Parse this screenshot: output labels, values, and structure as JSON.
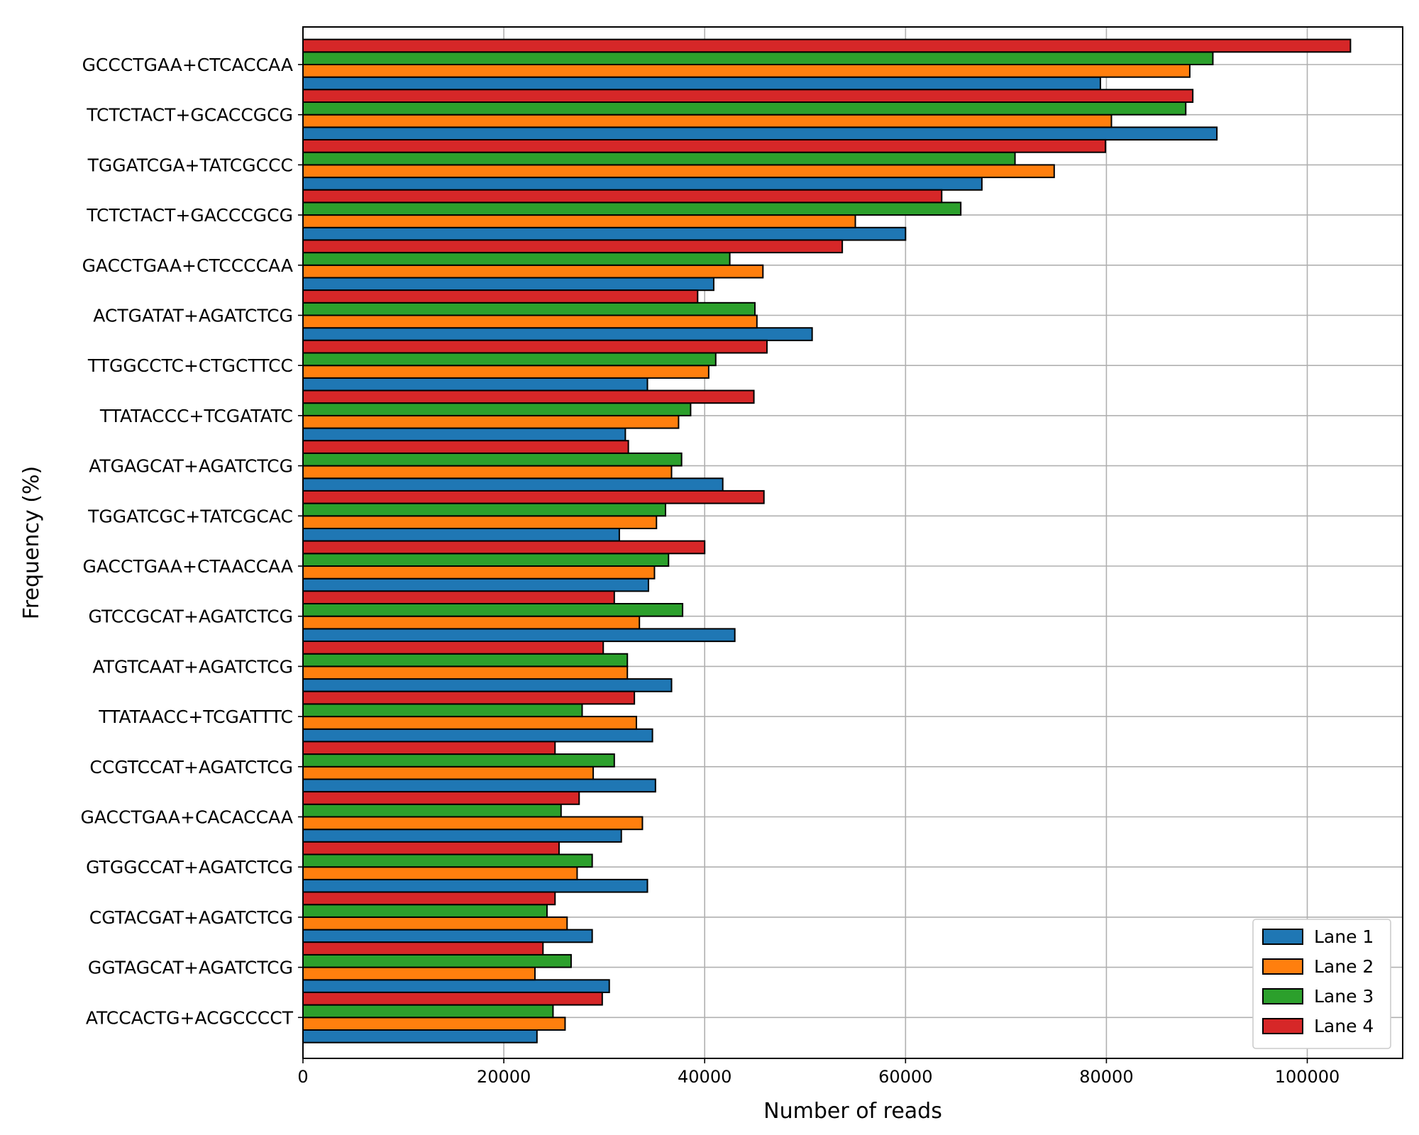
{
  "chart_data": {
    "type": "bar",
    "orientation": "horizontal",
    "title": "",
    "xlabel": "Number of reads",
    "ylabel": "Frequency (%)",
    "xlim": [
      0,
      109500
    ],
    "x_ticks": [
      0,
      20000,
      40000,
      60000,
      80000,
      100000
    ],
    "x_tick_labels": [
      "0",
      "20000",
      "40000",
      "60000",
      "80000",
      "100000"
    ],
    "grid": true,
    "legend_position": "lower-right",
    "categories": [
      "GCCCTGAA+CTCACCAA",
      "TCTCTACT+GCACCGCG",
      "TGGATCGA+TATCGCCC",
      "TCTCTACT+GACCCGCG",
      "GACCTGAA+CTCCCCAA",
      "ACTGATAT+AGATCTCG",
      "TTGGCCTC+CTGCTTCC",
      "TTATACCC+TCGATATC",
      "ATGAGCAT+AGATCTCG",
      "TGGATCGC+TATCGCAC",
      "GACCTGAA+CTAACCAA",
      "GTCCGCAT+AGATCTCG",
      "ATGTCAAT+AGATCTCG",
      "TTATAACC+TCGATTTC",
      "CCGTCCAT+AGATCTCG",
      "GACCTGAA+CACACCAA",
      "GTGGCCAT+AGATCTCG",
      "CGTACGAT+AGATCTCG",
      "GGTAGCAT+AGATCTCG",
      "ATCCACTG+ACGCCCCT"
    ],
    "series": [
      {
        "name": "Lane 1",
        "color": "#1f77b4",
        "values": [
          79400,
          91000,
          67600,
          60000,
          40900,
          50700,
          34300,
          32100,
          41800,
          31500,
          34400,
          43000,
          36700,
          34800,
          35100,
          31700,
          34300,
          28800,
          30500,
          23300
        ]
      },
      {
        "name": "Lane 2",
        "color": "#ff7f0e",
        "values": [
          88300,
          80500,
          74800,
          55000,
          45800,
          45200,
          40400,
          37400,
          36700,
          35200,
          35000,
          33500,
          32300,
          33200,
          28900,
          33800,
          27300,
          26300,
          23100,
          26100
        ]
      },
      {
        "name": "Lane 3",
        "color": "#2ca02c",
        "values": [
          90600,
          87900,
          70900,
          65500,
          42500,
          45000,
          41100,
          38600,
          37700,
          36100,
          36400,
          37800,
          32300,
          27800,
          31000,
          25700,
          28800,
          24300,
          26700,
          24900
        ]
      },
      {
        "name": "Lane 4",
        "color": "#d62728",
        "values": [
          104300,
          88600,
          79900,
          63600,
          53700,
          39300,
          46200,
          44900,
          32400,
          45900,
          40000,
          31000,
          29900,
          33000,
          25100,
          27500,
          25500,
          25100,
          23900,
          29800
        ]
      }
    ]
  }
}
